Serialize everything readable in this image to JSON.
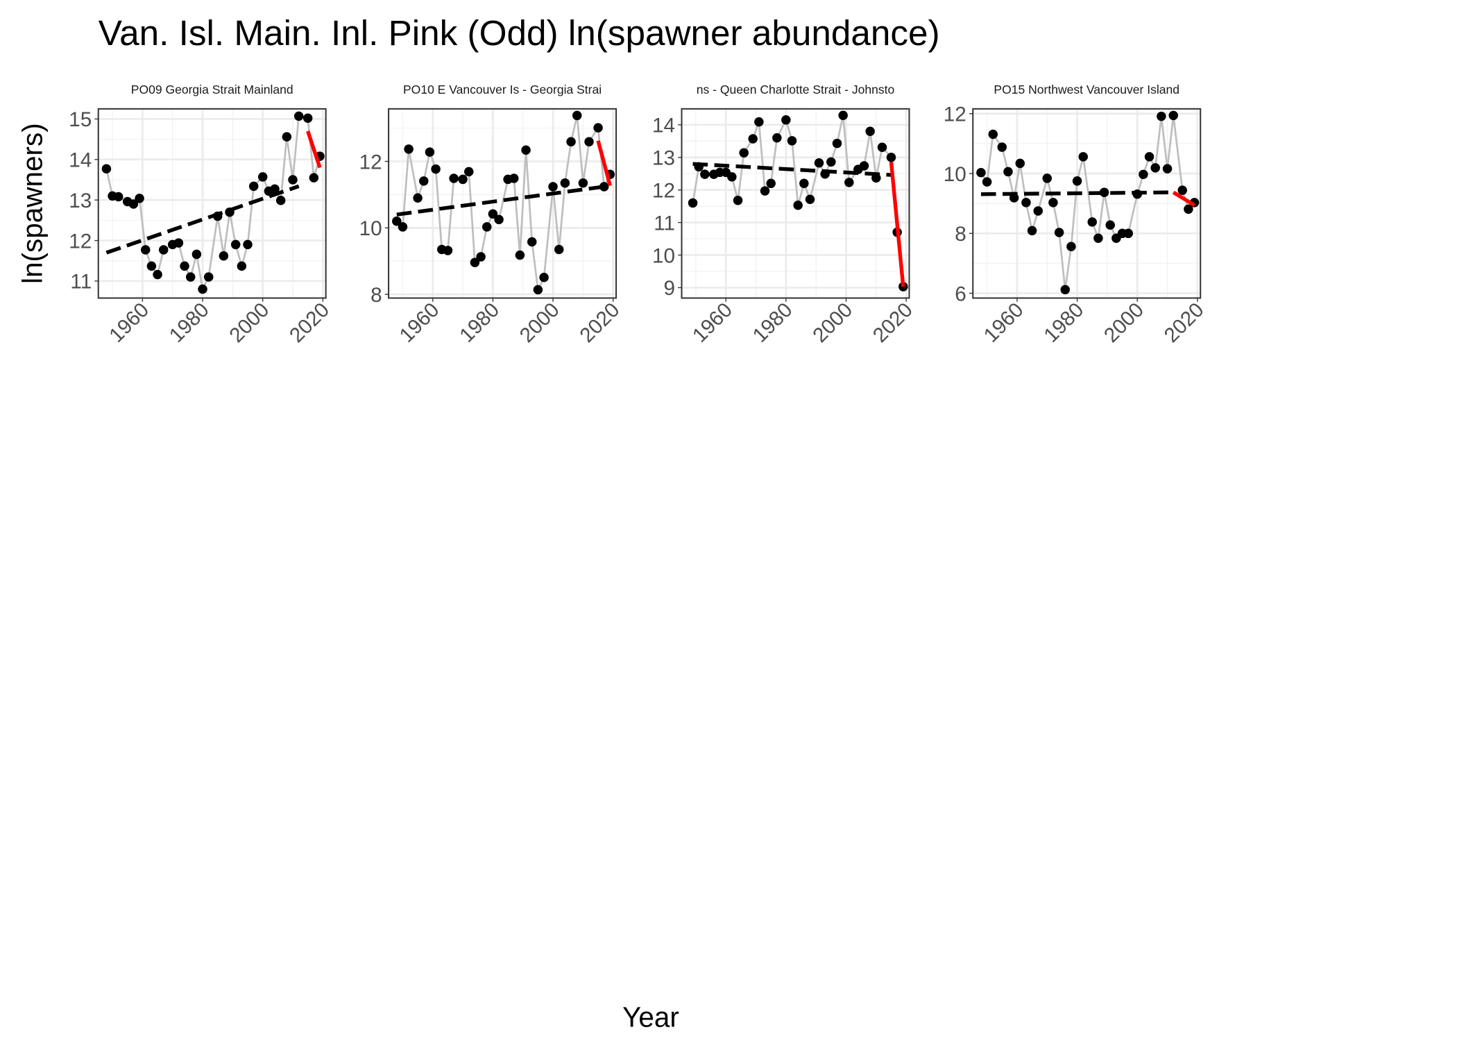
{
  "chart_data": {
    "type": "line",
    "title": "Van. Isl. Main. Inl. Pink (Odd) ln(spawner abundance)",
    "xlabel": "Year",
    "ylabel": "ln(spawners)",
    "point_color": "#000000",
    "line_color": "#bebebe",
    "trend_color": "#000000",
    "recent_color": "#ff0000",
    "grid": true,
    "facets": [
      {
        "title": "PO09 Georgia Strait Mainland",
        "x": [
          1948,
          1950,
          1952,
          1955,
          1957,
          1959,
          1961,
          1963,
          1965,
          1967,
          1970,
          1972,
          1974,
          1976,
          1978,
          1980,
          1982,
          1985,
          1987,
          1989,
          1991,
          1993,
          1995,
          1997,
          2000,
          2002,
          2004,
          2006,
          2008,
          2010,
          2012,
          2015,
          2017,
          2019
        ],
        "values": [
          13.77,
          13.1,
          13.08,
          12.96,
          12.9,
          13.04,
          11.77,
          11.37,
          11.16,
          11.77,
          11.9,
          11.94,
          11.37,
          11.1,
          11.66,
          10.8,
          11.1,
          12.6,
          11.62,
          12.7,
          11.9,
          11.37,
          11.9,
          13.34,
          13.57,
          13.22,
          13.27,
          12.99,
          14.56,
          13.5,
          15.07,
          15.02,
          13.55,
          14.08
        ],
        "trend": {
          "x": [
            1948,
            2012
          ],
          "values": [
            11.7,
            13.34
          ]
        },
        "recent": {
          "x": [
            2015,
            2019
          ],
          "values": [
            14.7,
            13.8
          ]
        },
        "xlim": [
          1945.3,
          2021
        ],
        "xticks": [
          1960,
          1980,
          2000,
          2020
        ],
        "ylim": [
          10.58,
          15.25
        ],
        "yticks": [
          11,
          12,
          13,
          14,
          15
        ]
      },
      {
        "title": "PO10 E Vancouver Is - Georgia Strai",
        "x": [
          1948,
          1950,
          1952,
          1955,
          1957,
          1959,
          1961,
          1963,
          1965,
          1967,
          1970,
          1972,
          1974,
          1976,
          1978,
          1980,
          1982,
          1985,
          1987,
          1989,
          1991,
          1993,
          1995,
          1997,
          2000,
          2002,
          2004,
          2006,
          2008,
          2010,
          2012,
          2015,
          2017,
          2019
        ],
        "values": [
          10.2,
          10.03,
          12.37,
          10.9,
          11.41,
          12.28,
          11.77,
          9.35,
          9.32,
          11.49,
          11.46,
          11.69,
          8.96,
          9.13,
          10.03,
          10.42,
          10.25,
          11.46,
          11.49,
          9.18,
          12.34,
          9.58,
          8.14,
          8.51,
          11.24,
          9.35,
          11.35,
          12.59,
          13.38,
          11.35,
          12.59,
          13.01,
          11.24,
          11.61
        ],
        "trend": {
          "x": [
            1948,
            2017
          ],
          "values": [
            10.4,
            11.24
          ]
        },
        "recent": {
          "x": [
            2015,
            2019
          ],
          "values": [
            12.62,
            11.27
          ]
        },
        "xlim": [
          1945.3,
          2021
        ],
        "xticks": [
          1960,
          1980,
          2000,
          2020
        ],
        "ylim": [
          7.89,
          13.58
        ],
        "yticks": [
          8,
          10,
          12
        ]
      },
      {
        "title": "ns - Queen Charlotte Strait - Johnsto",
        "x": [
          1949,
          1951,
          1953,
          1956,
          1958,
          1960,
          1962,
          1964,
          1966,
          1969,
          1971,
          1973,
          1975,
          1977,
          1980,
          1982,
          1984,
          1986,
          1988,
          1991,
          1993,
          1995,
          1997,
          1999,
          2001,
          2004,
          2006,
          2008,
          2010,
          2012,
          2015,
          2017,
          2019
        ],
        "values": [
          11.6,
          12.71,
          12.48,
          12.48,
          12.54,
          12.54,
          12.4,
          11.68,
          13.14,
          13.57,
          14.09,
          11.97,
          12.2,
          13.6,
          14.15,
          13.51,
          11.53,
          12.2,
          11.71,
          12.83,
          12.49,
          12.86,
          13.43,
          14.29,
          12.23,
          12.63,
          12.74,
          13.8,
          12.37,
          13.31,
          13.0,
          10.7,
          9.03
        ],
        "trend": {
          "x": [
            1949,
            2015
          ],
          "values": [
            12.8,
            12.46
          ]
        },
        "recent": {
          "x": [
            2015,
            2019
          ],
          "values": [
            12.86,
            9.03
          ]
        },
        "xlim": [
          1945.3,
          2021
        ],
        "xticks": [
          1960,
          1980,
          2000,
          2020
        ],
        "ylim": [
          8.68,
          14.49
        ],
        "yticks": [
          9,
          10,
          11,
          12,
          13,
          14
        ]
      },
      {
        "title": "PO15 Northwest Vancouver Island",
        "x": [
          1948,
          1950,
          1952,
          1955,
          1957,
          1959,
          1961,
          1963,
          1965,
          1967,
          1970,
          1972,
          1974,
          1976,
          1978,
          1980,
          1982,
          1985,
          1987,
          1989,
          1991,
          1993,
          1995,
          1997,
          2000,
          2002,
          2004,
          2006,
          2008,
          2010,
          2012,
          2015,
          2017,
          2019
        ],
        "values": [
          10.03,
          9.72,
          11.31,
          10.88,
          10.06,
          9.19,
          10.34,
          9.03,
          8.09,
          8.75,
          9.84,
          9.03,
          8.03,
          6.12,
          7.56,
          9.75,
          10.56,
          8.38,
          7.84,
          9.37,
          8.28,
          7.84,
          8.0,
          8.0,
          9.31,
          9.97,
          10.56,
          10.19,
          11.91,
          10.16,
          11.94,
          9.44,
          8.81,
          9.03
        ],
        "trend": {
          "x": [
            1948,
            2012
          ],
          "values": [
            9.31,
            9.37
          ]
        },
        "recent": {
          "x": [
            2012,
            2019
          ],
          "values": [
            9.37,
            8.94
          ]
        },
        "xlim": [
          1945.3,
          2021
        ],
        "xticks": [
          1960,
          1980,
          2000,
          2020
        ],
        "ylim": [
          5.84,
          12.16
        ],
        "yticks": [
          6,
          8,
          10,
          12
        ]
      }
    ]
  }
}
